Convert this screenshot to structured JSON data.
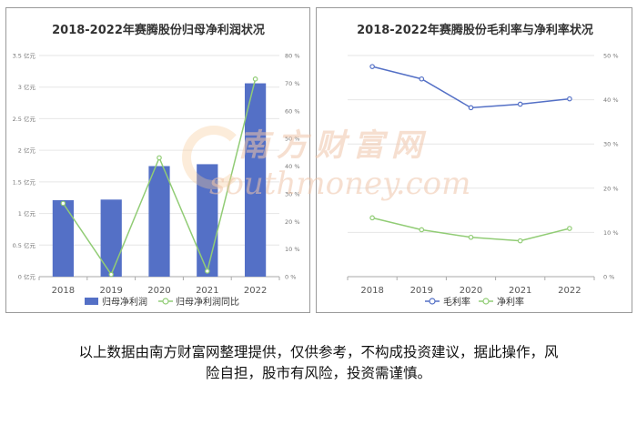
{
  "charts": {
    "left": {
      "title": "2018-2022年赛腾股份归母净利润状况",
      "legend": [
        "归母净利润",
        "归母净利润同比"
      ]
    },
    "right": {
      "title": "2018-2022年赛腾股份毛利率与净利率状况",
      "legend": [
        "毛利率",
        "净利率"
      ]
    }
  },
  "chart_data": [
    {
      "type": "bar",
      "title": "2018-2022年赛腾股份归母净利润状况",
      "categories": [
        "2018",
        "2019",
        "2020",
        "2021",
        "2022"
      ],
      "y_ticks": [
        "0 亿元",
        "0.5 亿元",
        "1 亿元",
        "1.5 亿元",
        "2 亿元",
        "2.5 亿元",
        "3 亿元",
        "3.5 亿元"
      ],
      "y2_ticks": [
        "0 %",
        "10 %",
        "20 %",
        "30 %",
        "40 %",
        "50 %",
        "60 %",
        "70 %",
        "80 %"
      ],
      "ylim": [
        0,
        3.5
      ],
      "y2lim": [
        0,
        80
      ],
      "legend_position": "bottom",
      "series": [
        {
          "name": "归母净利润",
          "kind": "bar",
          "axis": "left",
          "color": "#5470c6",
          "values": [
            1.21,
            1.22,
            1.75,
            1.78,
            3.06
          ]
        },
        {
          "name": "归母净利润同比",
          "kind": "line",
          "axis": "right",
          "color": "#91cc75",
          "values": [
            26.5,
            0.8,
            43.0,
            2.0,
            71.5
          ]
        }
      ]
    },
    {
      "type": "line",
      "title": "2018-2022年赛腾股份毛利率与净利率状况",
      "categories": [
        "2018",
        "2019",
        "2020",
        "2021",
        "2022"
      ],
      "y2_ticks": [
        "0 %",
        "10 %",
        "20 %",
        "30 %",
        "40 %",
        "50 %"
      ],
      "y2lim": [
        0,
        50
      ],
      "legend_position": "bottom",
      "series": [
        {
          "name": "毛利率",
          "axis": "right",
          "color": "#5470c6",
          "values": [
            47.5,
            44.7,
            38.2,
            39.0,
            40.2
          ]
        },
        {
          "name": "净利率",
          "axis": "right",
          "color": "#91cc75",
          "values": [
            13.3,
            10.6,
            8.9,
            8.1,
            10.9
          ]
        }
      ]
    }
  ],
  "watermark": {
    "cn": "南方财富网",
    "en": "southmoney.com"
  },
  "disclaimer": {
    "line1": "以上数据由南方财富网整理提供，仅供参考，不构成投资建议，据此操作，风",
    "line2": "险自担，股市有风险，投资需谨慎。"
  }
}
